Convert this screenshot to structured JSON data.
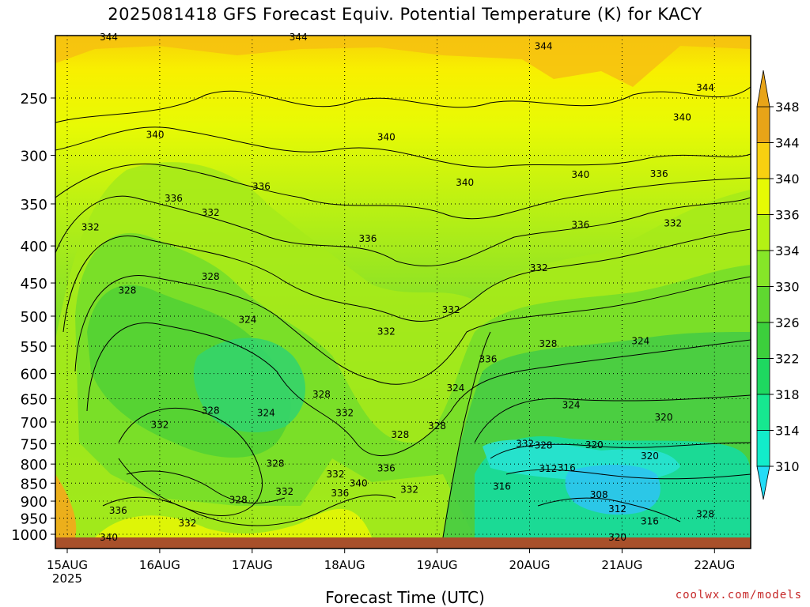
{
  "chart_data": {
    "type": "heatmap",
    "title": "2025081418 GFS Forecast Equiv. Potential Temperature (K) for KACY",
    "xlabel": "Forecast Time (UTC)",
    "ylabel": "",
    "x_ticks": [
      "15AUG",
      "16AUG",
      "17AUG",
      "18AUG",
      "19AUG",
      "20AUG",
      "21AUG",
      "22AUG"
    ],
    "x_tick_year": "2025",
    "y_ticks": [
      250,
      300,
      350,
      400,
      450,
      500,
      550,
      600,
      650,
      700,
      750,
      800,
      850,
      900,
      950,
      1000
    ],
    "y_scale": "log-pressure (hPa)",
    "colorbar": {
      "ticks": [
        310,
        314,
        318,
        322,
        326,
        330,
        334,
        336,
        340,
        344,
        348
      ],
      "colors": [
        "#24dcf6",
        "#12ecca",
        "#16e890",
        "#1ed860",
        "#3ccf3c",
        "#5fd830",
        "#86e628",
        "#b4f214",
        "#e6fa04",
        "#f8d010",
        "#e8a418"
      ]
    },
    "contour_labels": [
      {
        "value": "344",
        "time": 0.45,
        "p": 206
      },
      {
        "value": "344",
        "time": 2.5,
        "p": 206
      },
      {
        "value": "344",
        "time": 5.15,
        "p": 212
      },
      {
        "value": "344",
        "time": 6.9,
        "p": 242
      },
      {
        "value": "340",
        "time": 6.65,
        "p": 266
      },
      {
        "value": "340",
        "time": 0.95,
        "p": 281
      },
      {
        "value": "340",
        "time": 3.45,
        "p": 283
      },
      {
        "value": "340",
        "time": 4.3,
        "p": 327
      },
      {
        "value": "340",
        "time": 5.55,
        "p": 319
      },
      {
        "value": "336",
        "time": 6.4,
        "p": 318
      },
      {
        "value": "336",
        "time": 1.15,
        "p": 344
      },
      {
        "value": "336",
        "time": 2.1,
        "p": 331
      },
      {
        "value": "332",
        "time": 0.25,
        "p": 377
      },
      {
        "value": "332",
        "time": 1.55,
        "p": 360
      },
      {
        "value": "336",
        "time": 3.25,
        "p": 391
      },
      {
        "value": "336",
        "time": 5.55,
        "p": 374
      },
      {
        "value": "332",
        "time": 6.55,
        "p": 372
      },
      {
        "value": "328",
        "time": 0.65,
        "p": 461
      },
      {
        "value": "328",
        "time": 1.55,
        "p": 441
      },
      {
        "value": "332",
        "time": 4.15,
        "p": 490
      },
      {
        "value": "332",
        "time": 5.1,
        "p": 429
      },
      {
        "value": "332",
        "time": 3.45,
        "p": 525
      },
      {
        "value": "324",
        "time": 1.95,
        "p": 506
      },
      {
        "value": "328",
        "time": 5.2,
        "p": 546
      },
      {
        "value": "324",
        "time": 6.2,
        "p": 541
      },
      {
        "value": "336",
        "time": 4.55,
        "p": 573
      },
      {
        "value": "324",
        "time": 4.2,
        "p": 628
      },
      {
        "value": "328",
        "time": 2.75,
        "p": 641
      },
      {
        "value": "328",
        "time": 1.55,
        "p": 675
      },
      {
        "value": "324",
        "time": 2.15,
        "p": 680
      },
      {
        "value": "332",
        "time": 3.0,
        "p": 680
      },
      {
        "value": "324",
        "time": 5.45,
        "p": 663
      },
      {
        "value": "332",
        "time": 1.0,
        "p": 706
      },
      {
        "value": "320",
        "time": 6.45,
        "p": 690
      },
      {
        "value": "328",
        "time": 3.6,
        "p": 729
      },
      {
        "value": "328",
        "time": 4.0,
        "p": 709
      },
      {
        "value": "332",
        "time": 4.95,
        "p": 750
      },
      {
        "value": "328",
        "time": 5.15,
        "p": 754
      },
      {
        "value": "320",
        "time": 5.7,
        "p": 753
      },
      {
        "value": "320",
        "time": 6.3,
        "p": 780
      },
      {
        "value": "328",
        "time": 2.25,
        "p": 799
      },
      {
        "value": "312",
        "time": 5.2,
        "p": 812
      },
      {
        "value": "316",
        "time": 5.4,
        "p": 810
      },
      {
        "value": "332",
        "time": 2.9,
        "p": 826
      },
      {
        "value": "336",
        "time": 3.45,
        "p": 811
      },
      {
        "value": "316",
        "time": 4.7,
        "p": 859
      },
      {
        "value": "340",
        "time": 3.15,
        "p": 850
      },
      {
        "value": "332",
        "time": 2.35,
        "p": 873
      },
      {
        "value": "336",
        "time": 2.95,
        "p": 878
      },
      {
        "value": "332",
        "time": 3.7,
        "p": 868
      },
      {
        "value": "308",
        "time": 5.75,
        "p": 882
      },
      {
        "value": "328",
        "time": 1.85,
        "p": 897
      },
      {
        "value": "312",
        "time": 5.95,
        "p": 923
      },
      {
        "value": "336",
        "time": 0.55,
        "p": 928
      },
      {
        "value": "316",
        "time": 6.3,
        "p": 959
      },
      {
        "value": "332",
        "time": 1.3,
        "p": 965
      },
      {
        "value": "328",
        "time": 6.9,
        "p": 938
      },
      {
        "value": "340",
        "time": 0.45,
        "p": 1010
      },
      {
        "value": "320",
        "time": 5.95,
        "p": 1010
      }
    ]
  },
  "footer": {
    "credit": "coolwx.com/models"
  }
}
